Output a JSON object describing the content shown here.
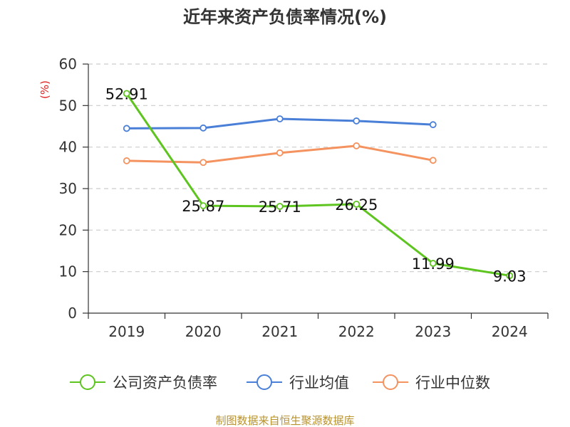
{
  "chart_data": {
    "type": "line",
    "title": "近年来资产负债率情况(%)",
    "ylabel": "(%)",
    "xlabel": "",
    "categories": [
      "2019",
      "2020",
      "2021",
      "2022",
      "2023",
      "2024"
    ],
    "ylim": [
      0,
      60
    ],
    "yticks": [
      0,
      10,
      20,
      30,
      40,
      50,
      60
    ],
    "grid": true,
    "legend_position": "bottom",
    "series": [
      {
        "name": "公司资产负债率",
        "color": "#5ec41f",
        "values": [
          52.91,
          25.87,
          25.71,
          26.25,
          11.99,
          9.03
        ],
        "labels": [
          "52.91",
          "25.87",
          "25.71",
          "26.25",
          "11.99",
          "9.03"
        ]
      },
      {
        "name": "行业均值",
        "color": "#4a7fd8",
        "values": [
          44.5,
          44.6,
          46.8,
          46.3,
          45.4,
          null
        ]
      },
      {
        "name": "行业中位数",
        "color": "#f4935f",
        "values": [
          36.7,
          36.3,
          38.6,
          40.3,
          36.8,
          null
        ]
      }
    ],
    "source": "制图数据来自恒生聚源数据库"
  }
}
